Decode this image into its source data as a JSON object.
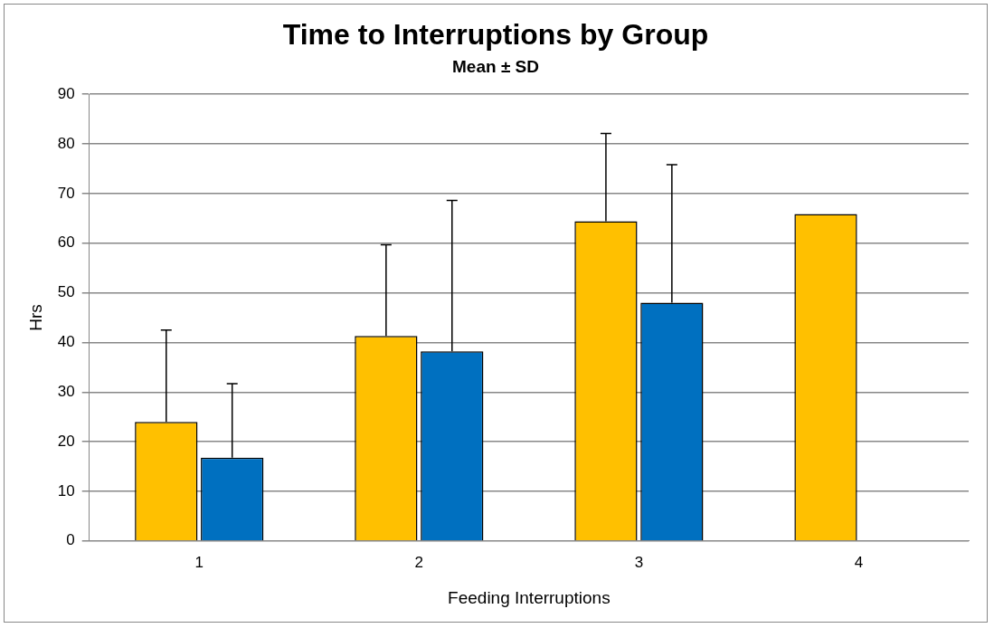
{
  "chart_data": {
    "type": "bar",
    "title": "Time to Interruptions by Group",
    "subtitle": "Mean ± SD",
    "xlabel": "Feeding Interruptions",
    "ylabel": "Hrs",
    "categories": [
      "1",
      "2",
      "3",
      "4"
    ],
    "series": [
      {
        "color": "#ffc000",
        "values": [
          24.0,
          41.3,
          64.4,
          65.9
        ],
        "errors": [
          [
            24.0,
            42.5
          ],
          [
            41.3,
            59.7
          ],
          [
            64.4,
            82.1
          ],
          null
        ]
      },
      {
        "color": "#0070c0",
        "values": [
          16.8,
          38.2,
          48.0,
          null
        ],
        "errors": [
          [
            16.8,
            31.7
          ],
          [
            38.2,
            68.6
          ],
          [
            48.0,
            75.8
          ],
          null
        ]
      }
    ],
    "ylim": [
      0,
      90
    ],
    "yticks": [
      0,
      10,
      20,
      30,
      40,
      50,
      60,
      70,
      80,
      90
    ],
    "grid": "y",
    "legend": false
  }
}
